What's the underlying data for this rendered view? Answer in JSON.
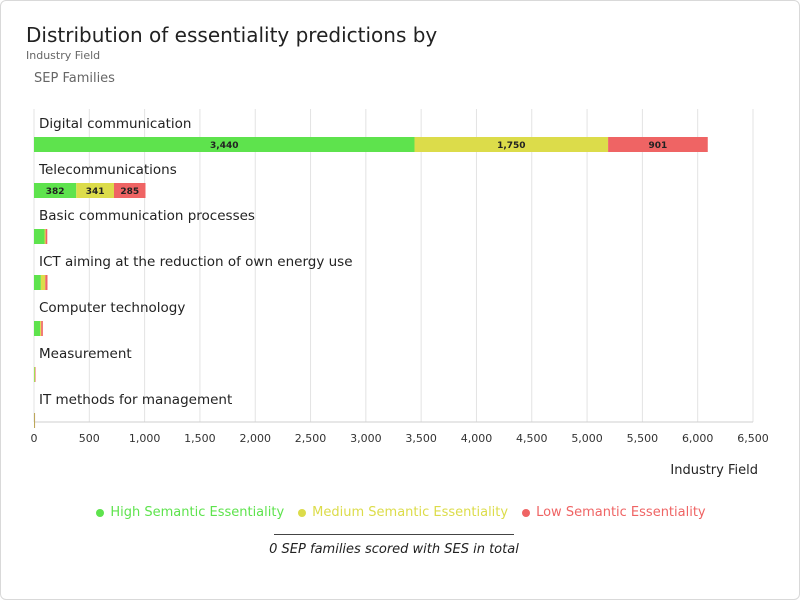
{
  "header": {
    "title": "Distribution of essentiality predictions by",
    "subtitle": "Industry Field"
  },
  "footer": {
    "note": "0 SEP families scored with SES in total"
  },
  "colors": {
    "high": "#5ee34d",
    "medium": "#dcdc4a",
    "low": "#ef6464"
  },
  "chart_data": {
    "type": "bar",
    "orientation": "horizontal",
    "stacked": true,
    "title": "Distribution of essentiality predictions by",
    "subtitle": "Industry Field",
    "ylabel": "SEP Families",
    "xlabel": "Industry Field",
    "xlim": [
      0,
      6500
    ],
    "xticks": [
      0,
      500,
      1000,
      1500,
      2000,
      2500,
      3000,
      3500,
      4000,
      4500,
      5000,
      5500,
      6000,
      6500
    ],
    "xtick_labels": [
      "0",
      "500",
      "1,000",
      "1,500",
      "2,000",
      "2,500",
      "3,000",
      "3,500",
      "4,000",
      "4,500",
      "5,000",
      "5,500",
      "6,000",
      "6,500"
    ],
    "grid": true,
    "legend_position": "bottom-center",
    "categories": [
      "Digital communication",
      "Telecommunications",
      "Basic communication processes",
      "ICT aiming at the reduction of own energy use",
      "Computer technology",
      "Measurement",
      "IT methods for management"
    ],
    "series": [
      {
        "name": "High Semantic Essentiality",
        "values": [
          3440,
          382,
          95,
          62,
          55,
          5,
          3
        ],
        "labels": [
          "3,440",
          "382",
          "",
          "",
          "",
          "",
          ""
        ]
      },
      {
        "name": "Medium Semantic Essentiality",
        "values": [
          1750,
          341,
          10,
          40,
          10,
          5,
          2
        ],
        "labels": [
          "1,750",
          "341",
          "",
          "",
          "",
          "",
          ""
        ]
      },
      {
        "name": "Low Semantic Essentiality",
        "values": [
          901,
          285,
          15,
          20,
          15,
          3,
          2
        ],
        "labels": [
          "901",
          "285",
          "",
          "",
          "",
          "",
          ""
        ]
      }
    ]
  }
}
